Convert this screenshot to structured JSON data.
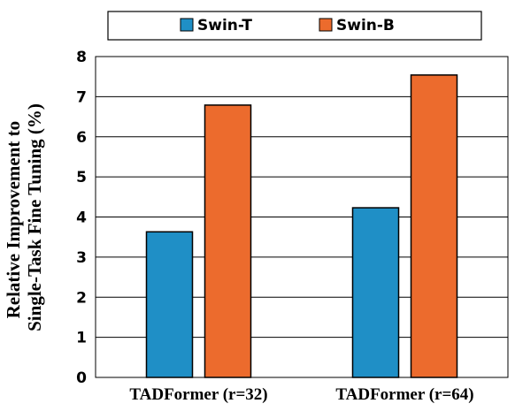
{
  "chart_data": {
    "type": "bar",
    "categories": [
      "TADFormer (r=32)",
      "TADFormer (r=64)"
    ],
    "series": [
      {
        "name": "Swin-T",
        "color": "#1f8fc6",
        "values": [
          3.63,
          4.23
        ]
      },
      {
        "name": "Swin-B",
        "color": "#ec6b2d",
        "values": [
          6.79,
          7.54
        ]
      }
    ],
    "ylabel_lines": [
      "Relative Improvement to",
      "Single-Task Fine Tuning (%)"
    ],
    "ylim": [
      0,
      8
    ],
    "yticks": [
      "0",
      "1",
      "2",
      "3",
      "4",
      "5",
      "6",
      "7",
      "8"
    ],
    "grid": true,
    "legend": "top-center"
  }
}
